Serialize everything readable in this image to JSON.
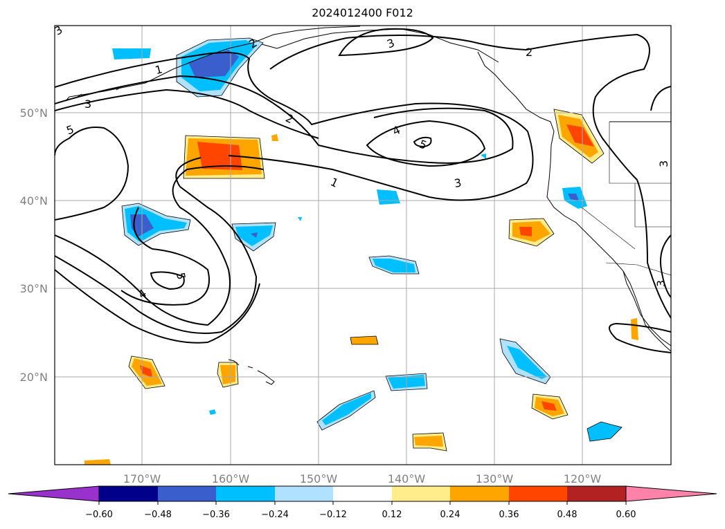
{
  "title": "2024012400 F012",
  "map": {
    "lon_range": [
      -180,
      -110
    ],
    "lat_range": [
      10,
      60
    ],
    "gridlines": true,
    "lon_ticks": [
      {
        "value": -170,
        "label": "170°W"
      },
      {
        "value": -160,
        "label": "160°W"
      },
      {
        "value": -150,
        "label": "150°W"
      },
      {
        "value": -140,
        "label": "140°W"
      },
      {
        "value": -130,
        "label": "130°W"
      },
      {
        "value": -120,
        "label": "120°W"
      }
    ],
    "lat_ticks": [
      {
        "value": 50,
        "label": "50°N"
      },
      {
        "value": 40,
        "label": "40°N"
      },
      {
        "value": 30,
        "label": "30°N"
      },
      {
        "value": 20,
        "label": "20°N"
      }
    ],
    "contour_labels": [
      "1",
      "2",
      "3",
      "3",
      "4",
      "5",
      "1",
      "3",
      "5",
      "4",
      "3",
      "2",
      "3",
      "3",
      "2",
      "5"
    ]
  },
  "colorbar": {
    "orientation": "horizontal",
    "extend": "both",
    "colors": [
      "#9932cc",
      "#00008b",
      "#3a5fcd",
      "#00bfff",
      "#b0e2ff",
      "#ffffff",
      "#ffec8b",
      "#ffa500",
      "#ff4500",
      "#b22222",
      "#ff82ab"
    ],
    "tick_labels": [
      "−0.60",
      "−0.48",
      "−0.36",
      "−0.24",
      "−0.12",
      "0.12",
      "0.24",
      "0.36",
      "0.48",
      "0.60"
    ]
  }
}
